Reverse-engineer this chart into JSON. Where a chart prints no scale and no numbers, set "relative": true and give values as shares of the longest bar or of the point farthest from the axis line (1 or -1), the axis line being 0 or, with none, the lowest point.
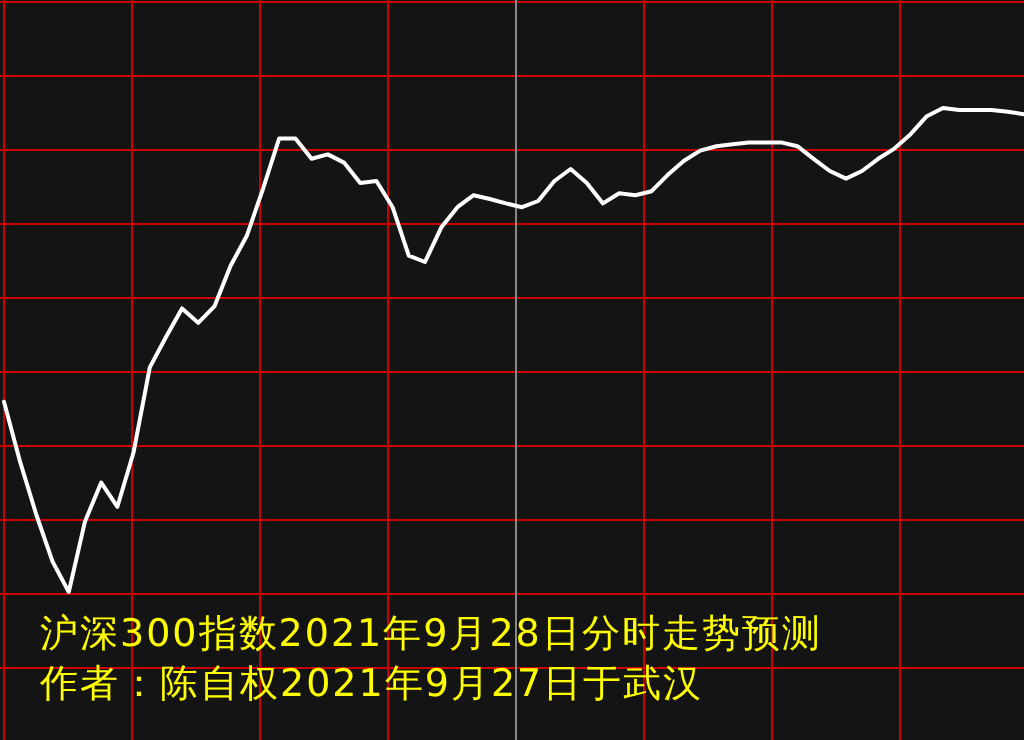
{
  "chart_data": {
    "type": "line",
    "title": "沪深300指数2021年9月28日分时走势预测",
    "subtitle": "作者：陈自权2021年9月27日于武汉",
    "relative": true,
    "grid": true,
    "categories": [
      null,
      null,
      null,
      null,
      null,
      null,
      null,
      null,
      null,
      null,
      null,
      null,
      null,
      null,
      null,
      null,
      null,
      null,
      null,
      null,
      null,
      null,
      null,
      null,
      null,
      null,
      null,
      null,
      null,
      null,
      null,
      null,
      null,
      null,
      null,
      null,
      null,
      null,
      null,
      null,
      null,
      null,
      null,
      null,
      null,
      null,
      null,
      null,
      null,
      null,
      null,
      null,
      null,
      null,
      null,
      null,
      null,
      null,
      null,
      null,
      null,
      null,
      null,
      null
    ],
    "series": [
      {
        "color": "#ffffff",
        "values": [
          0.393,
          0.268,
          0.159,
          0.063,
          0,
          0.146,
          0.226,
          0.176,
          0.289,
          0.464,
          0.527,
          0.586,
          0.556,
          0.59,
          0.674,
          0.736,
          0.833,
          0.937,
          0.937,
          0.895,
          0.904,
          0.887,
          0.845,
          0.849,
          0.795,
          0.695,
          0.682,
          0.753,
          0.795,
          0.82,
          0.812,
          0.803,
          0.795,
          0.808,
          0.849,
          0.874,
          0.845,
          0.803,
          0.824,
          0.82,
          0.828,
          0.862,
          0.891,
          0.912,
          0.921,
          0.925,
          0.929,
          0.929,
          0.929,
          0.921,
          0.895,
          0.87,
          0.854,
          0.87,
          0.895,
          0.916,
          0.946,
          0.983,
          1,
          0.996,
          0.996,
          0.996,
          0.992,
          0.987
        ]
      }
    ]
  }
}
